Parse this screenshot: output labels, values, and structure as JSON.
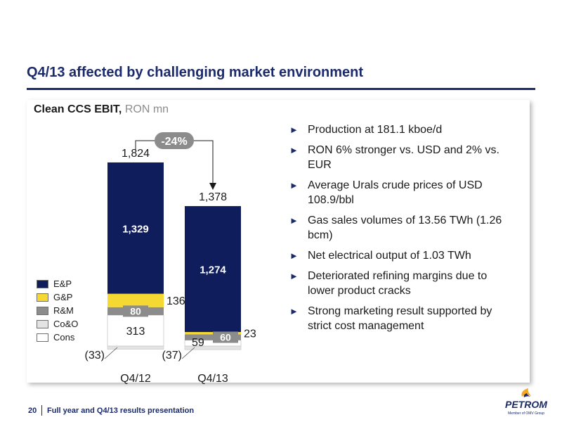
{
  "slide": {
    "title": "Q4/13 affected by challenging market environment",
    "chart_heading_bold": "Clean CCS EBIT,",
    "chart_heading_unit": "RON mn"
  },
  "bullets": [
    "Production at 181.1 kboe/d",
    "RON 6% stronger vs. USD and 2% vs. EUR",
    "Average Urals crude prices of USD 108.9/bbl",
    "Gas sales volumes of 13.56 TWh (1.26 bcm)",
    "Net electrical output of 1.03 TWh",
    "Deteriorated refining margins due to lower product cracks",
    "Strong marketing result supported by strict cost management"
  ],
  "chart_data": {
    "type": "bar",
    "stacked": true,
    "categories": [
      "Q4/12",
      "Q4/13"
    ],
    "series": [
      {
        "name": "E&P",
        "values": [
          1329,
          1274
        ],
        "labels": [
          "1,329",
          "1,274"
        ],
        "color": "#101d5c"
      },
      {
        "name": "G&P",
        "values": [
          136,
          23
        ],
        "labels": [
          "136",
          "23"
        ],
        "color": "#f6d832"
      },
      {
        "name": "R&M",
        "values": [
          80,
          60
        ],
        "labels": [
          "80",
          "60"
        ],
        "color": "#8c8c8c"
      },
      {
        "name": "Co&O",
        "values": [
          -33,
          -37
        ],
        "labels": [
          "(33)",
          "(37)"
        ],
        "color": "#e3e3e3"
      },
      {
        "name": "Cons",
        "values": [
          313,
          59
        ],
        "labels": [
          "313",
          "59"
        ],
        "color": "#ffffff"
      }
    ],
    "totals": [
      1824,
      1378
    ],
    "total_labels": [
      "1,824",
      "1,378"
    ],
    "change_label": "-24%",
    "legend_position": "bottom-left",
    "grid": false
  },
  "footer": {
    "page_number": "20",
    "text": "Full year and Q4/13 results presentation"
  },
  "logo": {
    "name": "PETROM",
    "tagline": "Member of OMV Group",
    "colors": {
      "brand_blue": "#1b2a6b",
      "flame": "#f5a623"
    }
  },
  "colors": {
    "accent": "#1b2a6b"
  }
}
